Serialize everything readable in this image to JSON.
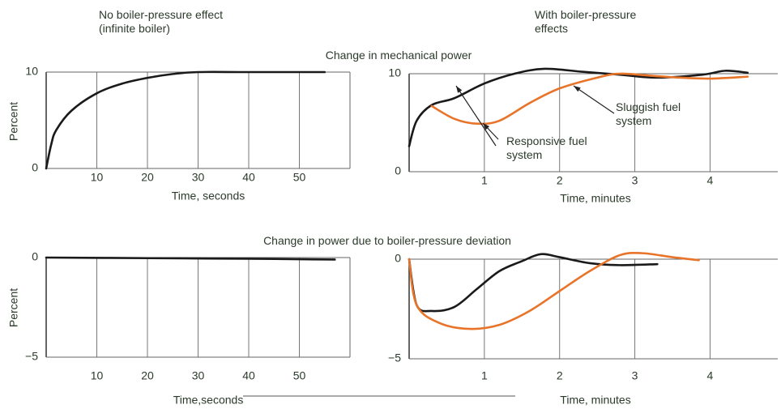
{
  "column_titles": [
    "No boiler-pressure effect (infinite boiler)",
    "With boiler-pressure effects"
  ],
  "row_titles": [
    "Change in mechanical power",
    "Change in power due to boiler-pressure deviation"
  ],
  "chart_data": [
    {
      "type": "line",
      "xlabel": "Time, seconds",
      "ylabel": "Percent",
      "xlim": [
        0,
        60
      ],
      "xticks": [
        10,
        20,
        30,
        40,
        50
      ],
      "ylim": [
        0,
        10
      ],
      "yticks": [
        0,
        10
      ],
      "grid": true,
      "series": [
        {
          "color": "#1a1a1a",
          "x": [
            0,
            1,
            2,
            5,
            10,
            15,
            20,
            25,
            30,
            40,
            55
          ],
          "values": [
            0,
            2.5,
            4,
            6,
            7.8,
            8.8,
            9.4,
            9.8,
            10,
            10,
            10
          ]
        }
      ]
    },
    {
      "type": "line",
      "xlabel": "Time, minutes",
      "xlim": [
        0,
        4.9
      ],
      "xticks": [
        1,
        2,
        3,
        4
      ],
      "ylim": [
        0,
        10
      ],
      "yticks": [
        0,
        10
      ],
      "grid": true,
      "annotations": [
        "Responsive fuel system",
        "Sluggish fuel system"
      ],
      "series": [
        {
          "color": "#1a1a1a",
          "x": [
            0,
            0.1,
            0.3,
            0.6,
            1.0,
            1.4,
            1.8,
            2.3,
            2.8,
            3.3,
            3.9,
            4.2,
            4.5
          ],
          "values": [
            2.6,
            5.2,
            6.8,
            7.5,
            9,
            10,
            10.5,
            10.2,
            9.9,
            9.6,
            9.9,
            10.3,
            10.1
          ]
        },
        {
          "color": "#e8742a",
          "x": [
            0.3,
            0.6,
            0.9,
            1.2,
            1.6,
            2.0,
            2.5,
            2.8,
            3.2,
            3.6,
            4.0,
            4.5
          ],
          "values": [
            6.7,
            5.4,
            4.9,
            5.2,
            7,
            8.5,
            9.6,
            10,
            9.8,
            9.6,
            9.5,
            9.7
          ]
        }
      ]
    },
    {
      "type": "line",
      "xlabel": "Time,seconds",
      "ylabel": "Percent",
      "xlim": [
        0,
        60
      ],
      "xticks": [
        10,
        20,
        30,
        40,
        50
      ],
      "ylim": [
        -5,
        0
      ],
      "yticks": [
        {
          "value": -5,
          "label": "−5"
        },
        0
      ],
      "grid": true,
      "series": [
        {
          "color": "#1a1a1a",
          "x": [
            0,
            20,
            40,
            57
          ],
          "values": [
            0,
            -0.03,
            -0.06,
            -0.1
          ]
        }
      ]
    },
    {
      "type": "line",
      "xlabel": "Time, minutes",
      "xlim": [
        0,
        4.9
      ],
      "xticks": [
        1,
        2,
        3,
        4
      ],
      "ylim": [
        -5,
        0
      ],
      "yticks": [
        {
          "value": -5,
          "label": "−5"
        },
        0
      ],
      "grid": true,
      "series": [
        {
          "color": "#1a1a1a",
          "x": [
            0,
            0.1,
            0.3,
            0.6,
            0.9,
            1.2,
            1.5,
            1.75,
            2.0,
            2.4,
            2.8,
            3.3
          ],
          "values": [
            0,
            -2.3,
            -2.6,
            -2.4,
            -1.5,
            -0.6,
            -0.1,
            0.25,
            0.1,
            -0.2,
            -0.3,
            -0.25
          ]
        },
        {
          "color": "#e8742a",
          "x": [
            0,
            0.1,
            0.4,
            0.8,
            1.2,
            1.6,
            2.0,
            2.4,
            2.8,
            3.1,
            3.5,
            3.85
          ],
          "values": [
            0,
            -2.3,
            -3.2,
            -3.5,
            -3.3,
            -2.6,
            -1.6,
            -0.6,
            0.2,
            0.3,
            0.1,
            -0.05
          ]
        }
      ]
    }
  ]
}
